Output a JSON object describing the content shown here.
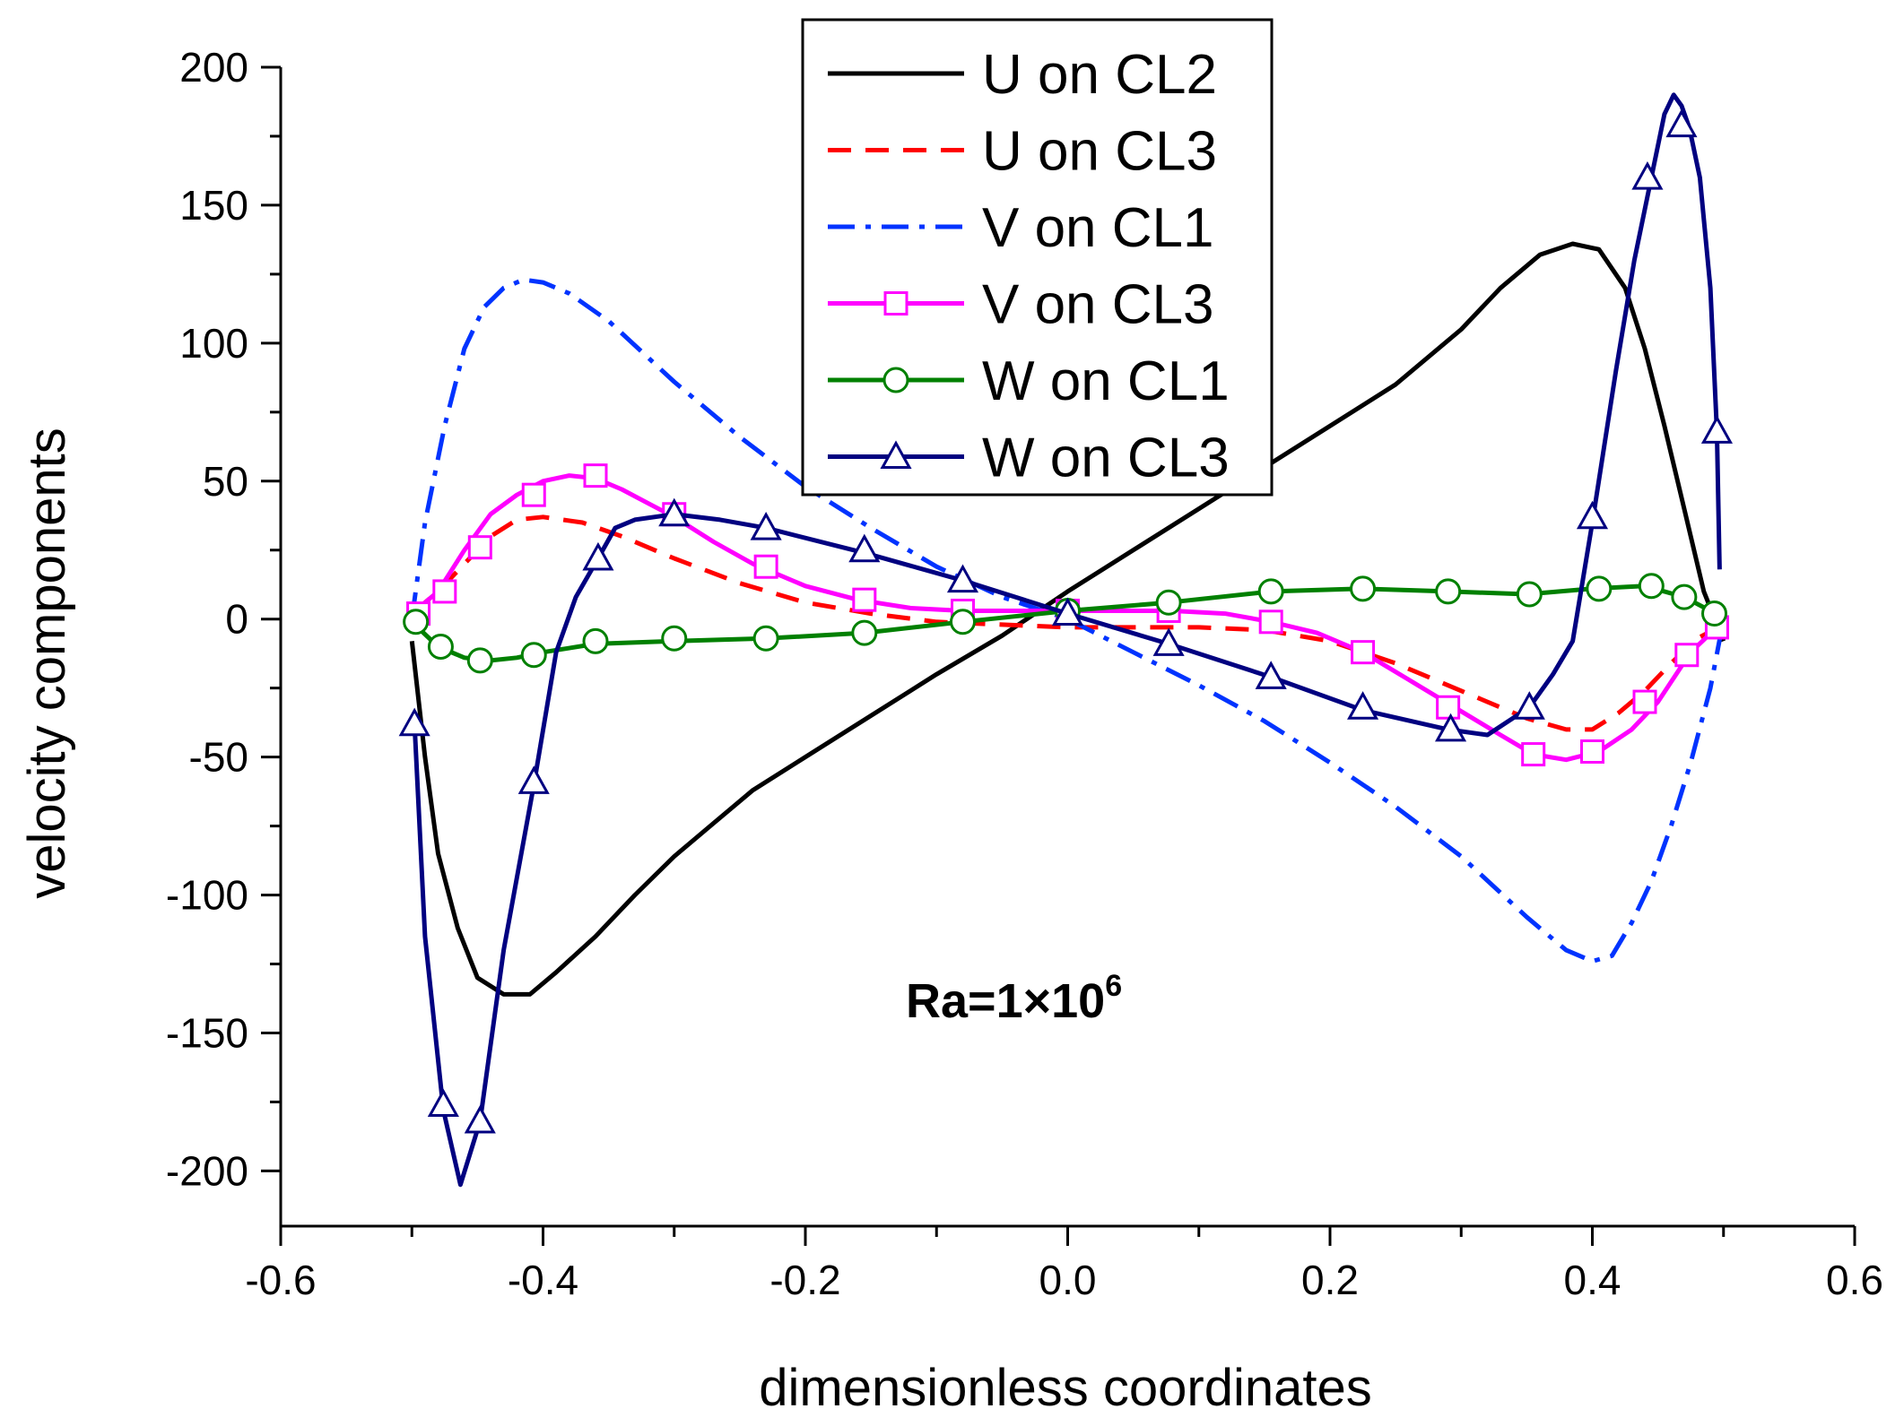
{
  "chart_data": {
    "type": "line",
    "title": "",
    "xlabel": "dimensionless coordinates",
    "ylabel": "velocity components",
    "xlim": [
      -0.6,
      0.6
    ],
    "ylim": [
      -220,
      200
    ],
    "xticks": [
      -0.6,
      -0.4,
      -0.2,
      0.0,
      0.2,
      0.4,
      0.6
    ],
    "xtick_labels": [
      "-0.6",
      "-0.4",
      "-0.2",
      "0.0",
      "0.2",
      "0.4",
      "0.6"
    ],
    "yticks": [
      -200,
      -150,
      -100,
      -50,
      0,
      50,
      100,
      150,
      200
    ],
    "ytick_labels": [
      "-200",
      "-150",
      "-100",
      "-50",
      "0",
      "50",
      "100",
      "150",
      "200"
    ],
    "legend_position": "top-center",
    "annotation": {
      "base": "Ra=1×10",
      "exponent": "6"
    },
    "series": [
      {
        "name": "U on CL2",
        "color": "#000000",
        "dash": "solid",
        "marker": "none",
        "x": [
          -0.5,
          -0.49,
          -0.48,
          -0.465,
          -0.45,
          -0.43,
          -0.41,
          -0.39,
          -0.36,
          -0.33,
          -0.3,
          -0.27,
          -0.24,
          -0.2,
          -0.15,
          -0.1,
          -0.05,
          0.0,
          0.05,
          0.1,
          0.15,
          0.2,
          0.25,
          0.3,
          0.33,
          0.36,
          0.385,
          0.405,
          0.425,
          0.44,
          0.455,
          0.47,
          0.485,
          0.5
        ],
        "y": [
          -8,
          -50,
          -85,
          -112,
          -130,
          -136,
          -136,
          -128,
          -115,
          -100,
          -86,
          -74,
          -62,
          -50,
          -35,
          -20,
          -6,
          10,
          25,
          40,
          55,
          70,
          85,
          105,
          120,
          132,
          136,
          134,
          120,
          98,
          70,
          40,
          10,
          -8
        ]
      },
      {
        "name": "U on CL3",
        "color": "#ff0000",
        "dash": "dashed",
        "marker": "none",
        "x": [
          -0.5,
          -0.48,
          -0.46,
          -0.44,
          -0.42,
          -0.4,
          -0.37,
          -0.34,
          -0.3,
          -0.25,
          -0.2,
          -0.15,
          -0.1,
          -0.05,
          0.0,
          0.05,
          0.1,
          0.15,
          0.2,
          0.25,
          0.3,
          0.35,
          0.38,
          0.4,
          0.42,
          0.44,
          0.46,
          0.48,
          0.5
        ],
        "y": [
          2,
          10,
          20,
          30,
          36,
          37,
          35,
          30,
          22,
          13,
          6,
          2,
          -1,
          -2,
          -3,
          -3,
          -3,
          -4,
          -8,
          -16,
          -26,
          -36,
          -40,
          -40,
          -34,
          -26,
          -16,
          -7,
          -2
        ]
      },
      {
        "name": "V on CL1",
        "color": "#0033ff",
        "dash": "dashdot",
        "marker": "none",
        "x": [
          -0.5,
          -0.49,
          -0.475,
          -0.46,
          -0.445,
          -0.43,
          -0.415,
          -0.4,
          -0.38,
          -0.35,
          -0.3,
          -0.25,
          -0.2,
          -0.15,
          -0.1,
          -0.05,
          0.0,
          0.05,
          0.1,
          0.15,
          0.2,
          0.25,
          0.3,
          0.35,
          0.38,
          0.4,
          0.415,
          0.43,
          0.445,
          0.46,
          0.475,
          0.49,
          0.5
        ],
        "y": [
          0,
          35,
          70,
          98,
          113,
          120,
          123,
          122,
          118,
          108,
          86,
          66,
          48,
          33,
          19,
          8,
          0,
          -12,
          -24,
          -37,
          -52,
          -68,
          -86,
          -108,
          -120,
          -124,
          -122,
          -110,
          -95,
          -75,
          -52,
          -25,
          0
        ]
      },
      {
        "name": "V on CL3",
        "color": "#ff00ff",
        "dash": "solid",
        "marker": "square",
        "x": [
          -0.5,
          -0.48,
          -0.46,
          -0.44,
          -0.42,
          -0.4,
          -0.38,
          -0.36,
          -0.34,
          -0.32,
          -0.3,
          -0.27,
          -0.24,
          -0.2,
          -0.16,
          -0.12,
          -0.08,
          -0.04,
          0.0,
          0.04,
          0.08,
          0.12,
          0.155,
          0.19,
          0.225,
          0.26,
          0.295,
          0.33,
          0.355,
          0.38,
          0.405,
          0.43,
          0.45,
          0.475,
          0.495
        ],
        "y": [
          2,
          10,
          25,
          38,
          45,
          50,
          52,
          51,
          47,
          42,
          37,
          28,
          20,
          12,
          7,
          4,
          3,
          3,
          3,
          3,
          3,
          2,
          -1,
          -5,
          -12,
          -22,
          -32,
          -42,
          -49,
          -51,
          -48,
          -40,
          -30,
          -12,
          -3
        ],
        "markers_x": [
          -0.495,
          -0.475,
          -0.448,
          -0.407,
          -0.36,
          -0.3,
          -0.23,
          -0.155,
          -0.08,
          0.0,
          0.077,
          0.155,
          0.225,
          0.29,
          0.355,
          0.4,
          0.44,
          0.472,
          0.495
        ],
        "markers_y": [
          2,
          10,
          26,
          45,
          52,
          38,
          19,
          7,
          3,
          3,
          3,
          -1,
          -12,
          -32,
          -49,
          -48,
          -30,
          -13,
          -3
        ]
      },
      {
        "name": "W on CL1",
        "color": "#008000",
        "dash": "solid",
        "marker": "circle",
        "x": [
          -0.5,
          -0.48,
          -0.46,
          -0.44,
          -0.42,
          -0.4,
          -0.36,
          -0.3,
          -0.23,
          -0.155,
          -0.08,
          0.0,
          0.077,
          0.155,
          0.225,
          0.29,
          0.35,
          0.4,
          0.44,
          0.47,
          0.49,
          0.5
        ],
        "y": [
          -1,
          -10,
          -14,
          -15,
          -14,
          -12,
          -9,
          -8,
          -7,
          -5,
          -1,
          3,
          6,
          10,
          11,
          10,
          9,
          11,
          12,
          8,
          3,
          0
        ],
        "markers_x": [
          -0.497,
          -0.478,
          -0.448,
          -0.407,
          -0.36,
          -0.3,
          -0.23,
          -0.155,
          -0.08,
          0.0,
          0.077,
          0.155,
          0.225,
          0.29,
          0.352,
          0.405,
          0.445,
          0.47,
          0.493
        ],
        "markers_y": [
          -1,
          -10,
          -15,
          -13,
          -8,
          -7,
          -7,
          -5,
          -1,
          3,
          6,
          10,
          11,
          10,
          9,
          11,
          12,
          8,
          2
        ]
      },
      {
        "name": "W on CL3",
        "color": "#000080",
        "dash": "solid",
        "marker": "triangle",
        "x": [
          -0.498,
          -0.49,
          -0.476,
          -0.463,
          -0.448,
          -0.43,
          -0.407,
          -0.39,
          -0.375,
          -0.358,
          -0.345,
          -0.33,
          -0.3,
          -0.265,
          -0.23,
          -0.155,
          -0.08,
          0.0,
          0.077,
          0.155,
          0.225,
          0.29,
          0.32,
          0.352,
          0.37,
          0.385,
          0.4,
          0.418,
          0.432,
          0.445,
          0.455,
          0.462,
          0.468,
          0.474,
          0.482,
          0.49,
          0.495,
          0.497
        ],
        "y": [
          -38,
          -115,
          -178,
          -205,
          -182,
          -120,
          -60,
          -12,
          8,
          22,
          33,
          36,
          38,
          36,
          33,
          24,
          14,
          2,
          -9,
          -21,
          -33,
          -40,
          -42,
          -32,
          -20,
          -8,
          35,
          90,
          130,
          160,
          183,
          190,
          186,
          178,
          160,
          120,
          68,
          18
        ],
        "markers_x": [
          -0.498,
          -0.476,
          -0.448,
          -0.407,
          -0.358,
          -0.3,
          -0.23,
          -0.155,
          -0.08,
          0.0,
          0.077,
          0.155,
          0.225,
          0.292,
          0.352,
          0.4,
          0.442,
          0.468,
          0.495
        ],
        "markers_y": [
          -38,
          -176,
          -182,
          -59,
          22,
          38,
          33,
          25,
          14,
          2,
          -9,
          -21,
          -32,
          -40,
          -32,
          37,
          160,
          179,
          68
        ]
      }
    ]
  }
}
